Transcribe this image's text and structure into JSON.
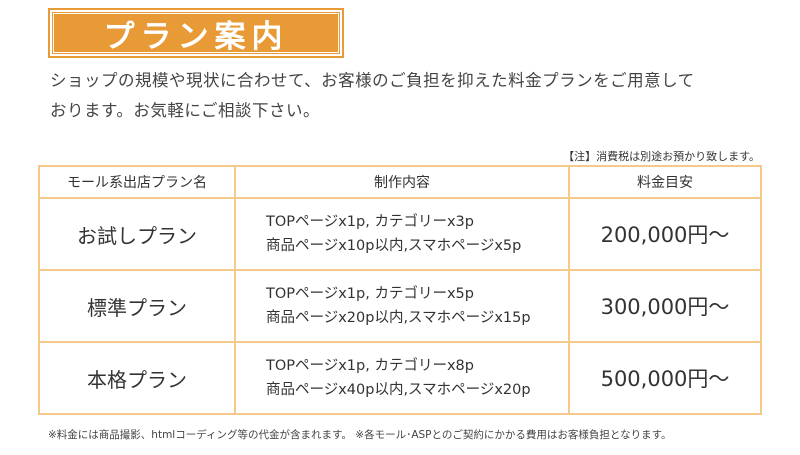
{
  "title": "プラン案内",
  "intro": {
    "line1": "ショップの規模や現状に合わせて、お客様のご負担を抑えた料金プランをご用意して",
    "line2": "おります。お気軽にご相談下さい。"
  },
  "tax_note": "【注】消費税は別途お預かり致します。",
  "table": {
    "headers": [
      "モール系出店プラン名",
      "制作内容",
      "料金目安"
    ],
    "rows": [
      {
        "name": "お試しプラン",
        "content1": "TOPページx1p, カテゴリーx3p",
        "content2": "商品ページx10p以内,スマホページx5p",
        "price": "200,000円～"
      },
      {
        "name": "標準プラン",
        "content1": "TOPページx1p, カテゴリーx5p",
        "content2": "商品ページx20p以内,スマホページx15p",
        "price": "300,000円～"
      },
      {
        "name": "本格プラン",
        "content1": "TOPページx1p, カテゴリーx8p",
        "content2": "商品ページx40p以内,スマホページx20p",
        "price": "500,000円～"
      }
    ]
  },
  "footer_note": "※料金には商品撮影、htmlコーディング等の代金が含まれます。 ※各モール･ASPとのご契約にかかる費用はお客様負担となります。",
  "colors": {
    "accent": "#e89a36",
    "border": "#f5c98a",
    "text": "#333333"
  }
}
